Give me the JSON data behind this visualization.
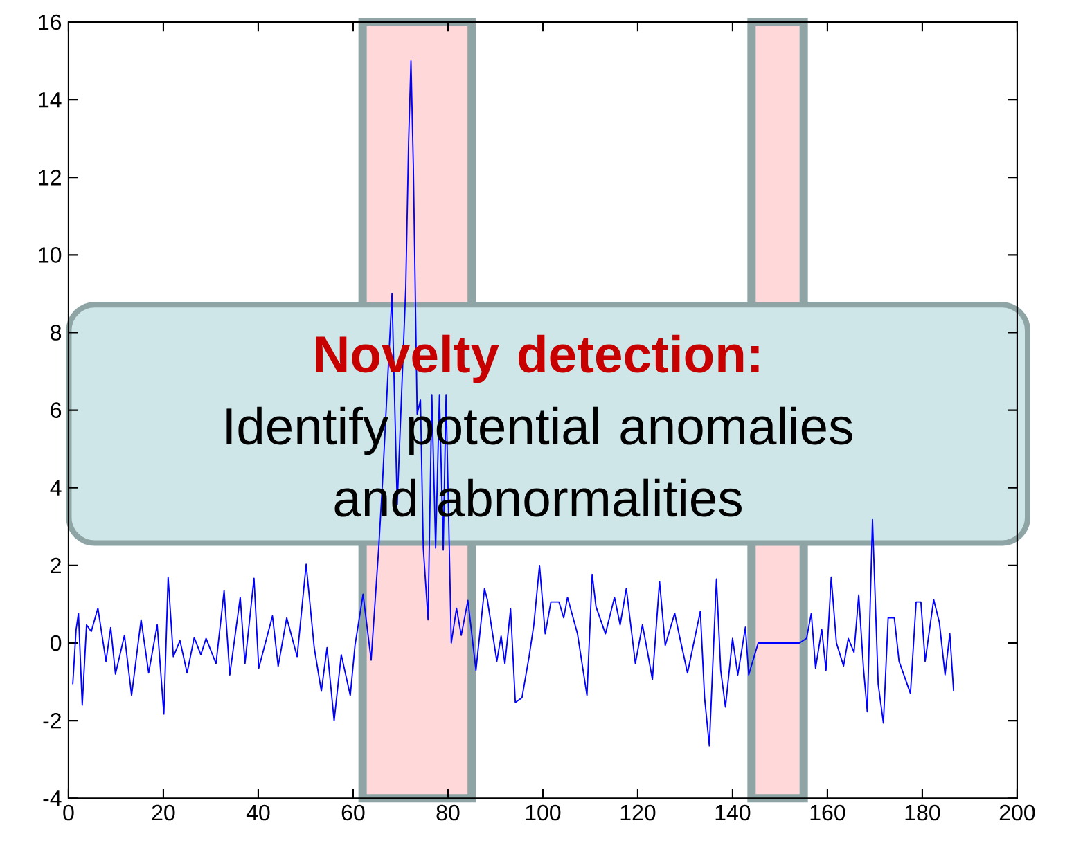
{
  "chart_data": {
    "type": "line",
    "annotations": [
      "**Novelty detection:**",
      "Identify potential anomalies and abnormalities"
    ],
    "x": [
      0.9,
      1.6,
      2.1,
      2.9,
      3.8,
      4.8,
      6.2,
      7.9,
      8.9,
      9.9,
      11.8,
      13.3,
      15.3,
      16.9,
      18.7,
      20.1,
      21,
      22.1,
      23.5,
      25,
      26.5,
      27.9,
      29,
      31.1,
      32.8,
      34,
      36.2,
      37.2,
      39.1,
      40.1,
      43,
      44.2,
      46,
      48.2,
      50.1,
      51.8,
      53.3,
      54.5,
      56,
      57.5,
      59.4,
      60.4,
      62.1,
      63.8,
      65.4,
      66.2,
      68.2,
      69.3,
      71.1,
      71.7,
      72.2,
      72.7,
      73.5,
      74.2,
      74.8,
      75.8,
      76.6,
      77.4,
      78.2,
      79,
      79.6,
      80.7,
      81.8,
      82.8,
      84.2,
      85.9,
      87.7,
      88.3,
      90.3,
      91.2,
      92,
      93.2,
      94.2,
      95.6,
      97.1,
      98.1,
      99.3,
      100.5,
      101.7,
      103.4,
      104.4,
      105.2,
      107.3,
      109.3,
      110.4,
      111.2,
      113.2,
      115.1,
      116.3,
      117.6,
      119.5,
      121,
      121.9,
      123.1,
      124.6,
      125.8,
      127.8,
      128.8,
      130.5,
      133.2,
      134.1,
      135.1,
      136.6,
      137.5,
      138.5,
      140,
      141.1,
      142.7,
      143.4,
      145.4,
      154.1,
      155.6,
      156.6,
      157.5,
      158.8,
      159.7,
      160.8,
      161.9,
      163.4,
      164.4,
      165.6,
      166.6,
      167.6,
      168.4,
      169.5,
      170.7,
      171.8,
      172.8,
      174.1,
      175.1,
      177.5,
      178.7,
      179.7,
      180.6,
      182.4,
      183.6,
      184.8,
      185.8,
      186.6
    ],
    "series": [
      {
        "color": "#0000ff",
        "values": [
          -1.06,
          0.35,
          0.77,
          -1.6,
          0.47,
          0.3,
          0.9,
          -0.47,
          0.4,
          -0.8,
          0.2,
          -1.35,
          0.6,
          -0.77,
          0.47,
          -1.83,
          1.7,
          -0.35,
          0.06,
          -0.77,
          0.14,
          -0.3,
          0.12,
          -0.53,
          1.35,
          -0.82,
          1.18,
          -0.53,
          1.67,
          -0.65,
          0.7,
          -0.6,
          0.65,
          -0.35,
          2.03,
          -0.12,
          -1.24,
          -0.12,
          -2.0,
          -0.3,
          -1.35,
          -0.06,
          1.26,
          -0.44,
          2.45,
          4.15,
          9.0,
          3.57,
          9.15,
          12.9,
          15,
          12.3,
          5.9,
          6.26,
          2.45,
          0.6,
          6.4,
          2.45,
          6.4,
          2.4,
          6.4,
          0.0,
          0.9,
          0.2,
          1.1,
          -0.7,
          1.4,
          1.12,
          -0.47,
          0.18,
          -0.53,
          0.88,
          -1.53,
          -1.41,
          -0.35,
          0.47,
          2.0,
          0.24,
          1.06,
          1.06,
          0.65,
          1.18,
          0.24,
          -1.35,
          1.77,
          0.94,
          0.24,
          1.18,
          0.47,
          1.41,
          -0.53,
          0.47,
          -0.12,
          -0.94,
          1.59,
          -0.06,
          0.77,
          0.18,
          -0.77,
          0.82,
          -1.41,
          -2.65,
          1.65,
          -0.7,
          -1.65,
          0.12,
          -0.82,
          0.41,
          -0.82,
          0,
          0,
          0.12,
          0.77,
          -0.65,
          0.35,
          -0.7,
          1.7,
          0,
          -0.59,
          0.12,
          -0.24,
          1.24,
          -0.65,
          -1.77,
          3.18,
          -1.06,
          -2.06,
          0.65,
          0.65,
          -0.47,
          -1.3,
          1.06,
          1.06,
          -0.47,
          1.12,
          0.53,
          -0.82,
          0.24,
          -1.24
        ]
      }
    ],
    "xlim": [
      0,
      200
    ],
    "ylim": [
      -4,
      16
    ],
    "xticks": [
      0,
      20,
      40,
      60,
      80,
      100,
      120,
      140,
      160,
      180,
      200
    ],
    "yticks": [
      -4,
      -2,
      0,
      2,
      4,
      6,
      8,
      10,
      12,
      14,
      16
    ],
    "grid": false,
    "marker": "none",
    "line_style": "solid",
    "bands": [
      {
        "axis": "x",
        "from": 62,
        "to": 85,
        "color": "#ffd9d9"
      },
      {
        "axis": "x",
        "from": 144,
        "to": 155,
        "color": "#ffd9d9"
      }
    ]
  }
}
